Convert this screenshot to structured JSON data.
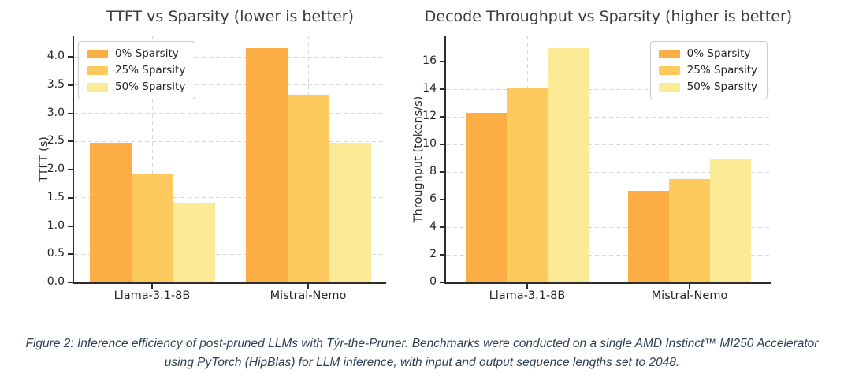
{
  "figure": {
    "caption_lines": [
      "Figure 2: Inference efficiency of post-pruned LLMs with Týr-the-Pruner. Benchmarks were conducted on a single AMD Instinct™ MI250 Accelerator",
      "using PyTorch (HipBlas) for LLM inference, with input and output sequence lengths set to 2048."
    ],
    "caption_color": "#2e4156"
  },
  "chart_data": [
    {
      "type": "bar",
      "title": "TTFT vs Sparsity (lower is better)",
      "xlabel": "",
      "ylabel": "TTFT (s)",
      "categories": [
        "Llama-3.1-8B",
        "Mistral-Nemo"
      ],
      "series": [
        {
          "name": "0% Sparsity",
          "color": "#FCAD45",
          "values": [
            2.48,
            4.15
          ]
        },
        {
          "name": "25% Sparsity",
          "color": "#FEC95D",
          "values": [
            1.93,
            3.33
          ]
        },
        {
          "name": "50% Sparsity",
          "color": "#FBEB96",
          "values": [
            1.42,
            2.48
          ]
        }
      ],
      "ylim": [
        0,
        4.38
      ],
      "yticks": [
        0.0,
        0.5,
        1.0,
        1.5,
        2.0,
        2.5,
        3.0,
        3.5,
        4.0
      ],
      "ytick_labels": [
        "0.0",
        "0.5",
        "1.0",
        "1.5",
        "2.0",
        "2.5",
        "3.0",
        "3.5",
        "4.0"
      ],
      "grid": true,
      "legend_position": "top-left"
    },
    {
      "type": "bar",
      "title": "Decode Throughput vs Sparsity (higher is better)",
      "xlabel": "",
      "ylabel": "Throughput (tokens/s)",
      "categories": [
        "Llama-3.1-8B",
        "Mistral-Nemo"
      ],
      "series": [
        {
          "name": "0% Sparsity",
          "color": "#FCAD45",
          "values": [
            12.3,
            6.65
          ]
        },
        {
          "name": "25% Sparsity",
          "color": "#FEC95D",
          "values": [
            14.1,
            7.5
          ]
        },
        {
          "name": "50% Sparsity",
          "color": "#FBEB96",
          "values": [
            17.0,
            8.9
          ]
        }
      ],
      "ylim": [
        0,
        17.9
      ],
      "yticks": [
        0,
        2,
        4,
        6,
        8,
        10,
        12,
        14,
        16
      ],
      "ytick_labels": [
        "0",
        "2",
        "4",
        "6",
        "8",
        "10",
        "12",
        "14",
        "16"
      ],
      "grid": true,
      "legend_position": "top-right"
    }
  ]
}
